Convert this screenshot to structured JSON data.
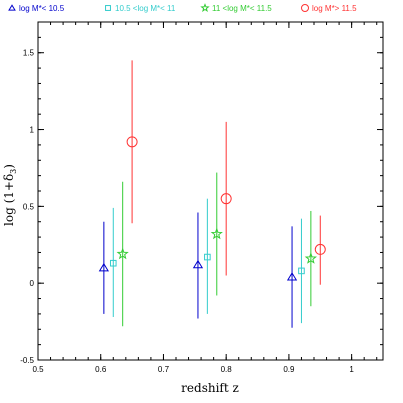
{
  "chart_data": {
    "type": "scatter",
    "title": "",
    "xlabel": "redshift z",
    "ylabel": "log (1+δ",
    "ylabel_sub": "3",
    "ylabel_close": ")",
    "xlim": [
      0.5,
      1.05
    ],
    "ylim": [
      -0.5,
      1.7
    ],
    "x_ticks": [
      0.5,
      0.6,
      0.7,
      0.8,
      0.9,
      1
    ],
    "x_tick_labels": [
      "0.5",
      "0.6",
      "0.7",
      "0.8",
      "0.9",
      "1"
    ],
    "y_ticks": [
      -0.5,
      0,
      0.5,
      1,
      1.5
    ],
    "y_tick_labels": [
      "-0.5",
      "0",
      "0.5",
      "1",
      "1.5"
    ],
    "grid": false,
    "legend_position": "top",
    "series": [
      {
        "name": "log M*< 10.5",
        "color": "#0000cc",
        "marker": "triangle",
        "points": [
          {
            "x": 0.605,
            "y": 0.1,
            "ylow": -0.2,
            "yhigh": 0.4
          },
          {
            "x": 0.755,
            "y": 0.12,
            "ylow": -0.23,
            "yhigh": 0.46
          },
          {
            "x": 0.905,
            "y": 0.04,
            "ylow": -0.29,
            "yhigh": 0.37
          }
        ]
      },
      {
        "name": "10.5 <log M*< 11",
        "color": "#33cccc",
        "marker": "square",
        "points": [
          {
            "x": 0.62,
            "y": 0.13,
            "ylow": -0.22,
            "yhigh": 0.49
          },
          {
            "x": 0.77,
            "y": 0.17,
            "ylow": -0.2,
            "yhigh": 0.55
          },
          {
            "x": 0.92,
            "y": 0.08,
            "ylow": -0.26,
            "yhigh": 0.42
          }
        ]
      },
      {
        "name": "11 <log M*< 11.5",
        "color": "#33cc33",
        "marker": "star",
        "points": [
          {
            "x": 0.635,
            "y": 0.19,
            "ylow": -0.28,
            "yhigh": 0.66
          },
          {
            "x": 0.785,
            "y": 0.32,
            "ylow": -0.08,
            "yhigh": 0.72
          },
          {
            "x": 0.935,
            "y": 0.16,
            "ylow": -0.15,
            "yhigh": 0.47
          }
        ]
      },
      {
        "name": "log M*> 11.5",
        "color": "#ff3333",
        "marker": "circle",
        "points": [
          {
            "x": 0.65,
            "y": 0.92,
            "ylow": 0.39,
            "yhigh": 1.45
          },
          {
            "x": 0.8,
            "y": 0.55,
            "ylow": 0.05,
            "yhigh": 1.05
          },
          {
            "x": 0.95,
            "y": 0.22,
            "ylow": -0.01,
            "yhigh": 0.44
          }
        ]
      }
    ]
  }
}
